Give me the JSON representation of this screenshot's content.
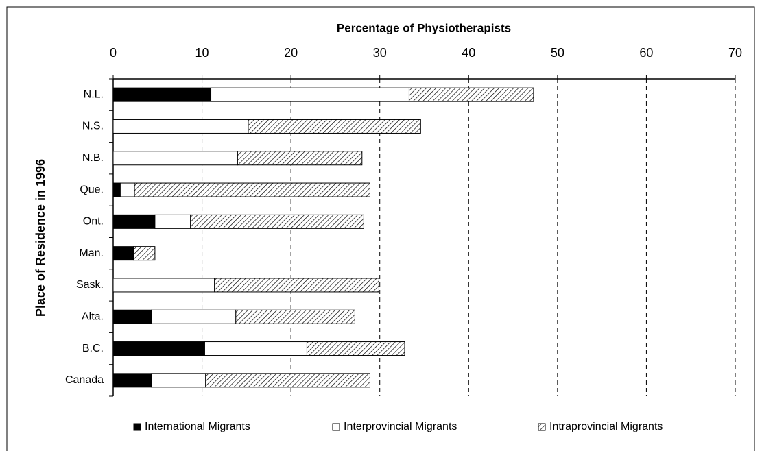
{
  "chart_data": {
    "type": "stacked_barh",
    "title": "Percentage of Physiotherapists",
    "y_label": "Place of Residence in 1996",
    "categories": [
      "N.L.",
      "N.S.",
      "N.B.",
      "Que.",
      "Ont.",
      "Man.",
      "Sask.",
      "Alta.",
      "B.C.",
      "Canada"
    ],
    "series": [
      {
        "name": "International Migrants",
        "color": "#000000",
        "values": [
          11.0,
          0,
          0,
          0.8,
          4.7,
          2.3,
          0,
          4.3,
          10.3,
          4.3
        ]
      },
      {
        "name": "Interprovincial Migrants",
        "color": "#ffffff",
        "values": [
          22.3,
          15.2,
          14.0,
          1.6,
          4.0,
          0,
          11.4,
          9.5,
          11.5,
          6.1
        ]
      },
      {
        "name": "Intraprovincial Migrants",
        "color": "#000000",
        "fill_pattern": "diagonal-hatch",
        "values": [
          14.0,
          19.4,
          14.0,
          26.5,
          19.5,
          2.4,
          18.5,
          13.4,
          11.0,
          18.5
        ]
      }
    ],
    "xlim": [
      0,
      70
    ],
    "xticks": [
      0,
      10,
      20,
      30,
      40,
      50,
      60,
      70
    ],
    "grid": true,
    "legend": "bottom"
  }
}
